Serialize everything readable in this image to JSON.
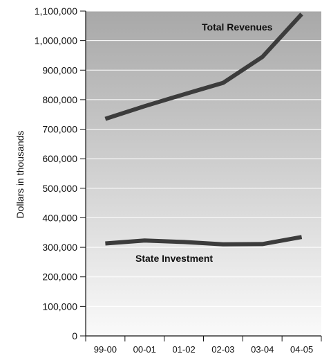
{
  "chart_data": {
    "type": "line",
    "title": "",
    "xlabel": "",
    "ylabel": "Dollars in thousands",
    "categories": [
      "99-00",
      "00-01",
      "01-02",
      "02-03",
      "03-04",
      "04-05"
    ],
    "ylim": [
      0,
      1100000
    ],
    "yticks": [
      0,
      100000,
      200000,
      300000,
      400000,
      500000,
      600000,
      700000,
      800000,
      900000,
      1000000,
      1100000
    ],
    "ytick_labels": [
      "0",
      "100,000",
      "200,000",
      "300,000",
      "400,000",
      "500,000",
      "600,000",
      "700,000",
      "800,000",
      "900,000",
      "1,000,000",
      "1,100,000"
    ],
    "grid": "horizontal",
    "legend": "none",
    "background": {
      "bottom": "#fafafa",
      "top": "#a8a8a8"
    },
    "series": [
      {
        "name": "Total Revenues",
        "values": [
          735000,
          778000,
          818000,
          857000,
          945000,
          1090000
        ],
        "color": "#3c3c3c"
      },
      {
        "name": "State Investment",
        "values": [
          313000,
          323000,
          318000,
          310000,
          311000,
          335000
        ],
        "color": "#3c3c3c"
      }
    ],
    "annotations": [
      "Total Revenues",
      "State Investment"
    ]
  }
}
